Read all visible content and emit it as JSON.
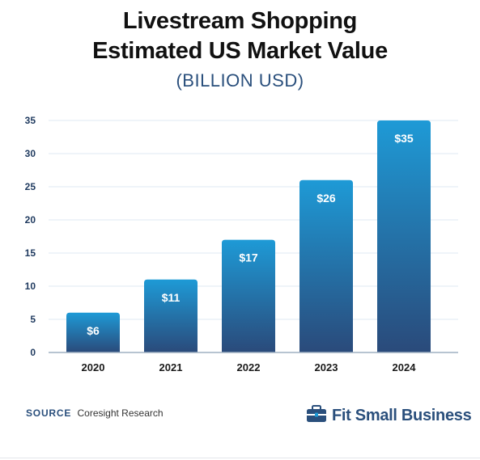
{
  "header": {
    "title_line1": "Livestream Shopping",
    "title_line2": "Estimated US Market Value",
    "subtitle": "(BILLION USD)"
  },
  "footer": {
    "source_key": "SOURCE",
    "source_value": "Coresight Research",
    "brand_name": "Fit Small Business",
    "brand_icon": "briefcase-icon"
  },
  "colors": {
    "bar_top": "#1e9ad6",
    "bar_bottom": "#2a4a7a",
    "grid": "#dfe9f3",
    "axis": "#9fb0c2"
  },
  "chart_data": {
    "type": "bar",
    "categories": [
      "2020",
      "2021",
      "2022",
      "2023",
      "2024"
    ],
    "values": [
      6,
      11,
      17,
      26,
      35
    ],
    "data_labels": [
      "$6",
      "$11",
      "$17",
      "$26",
      "$35"
    ],
    "ylim": [
      0,
      35
    ],
    "yticks": [
      0,
      5,
      10,
      15,
      20,
      25,
      30,
      35
    ],
    "grid": true,
    "legend": "none",
    "title": "Livestream Shopping Estimated US Market Value",
    "subtitle": "(BILLION USD)",
    "xlabel": "",
    "ylabel": ""
  }
}
